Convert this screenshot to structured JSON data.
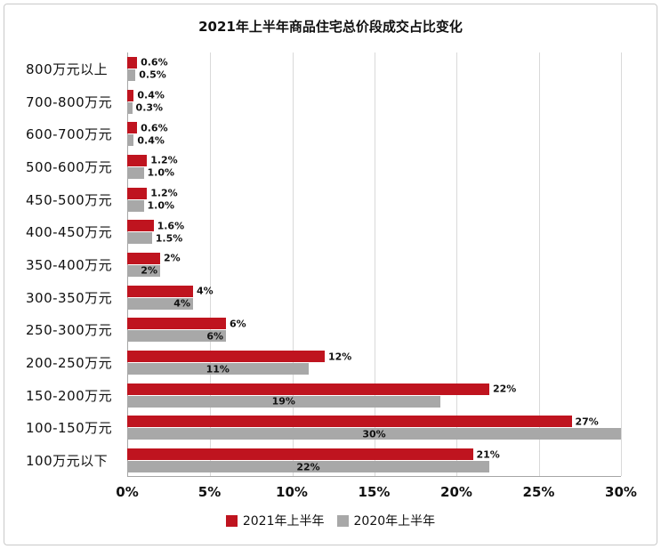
{
  "chart_data": {
    "type": "bar",
    "orientation": "horizontal",
    "title": "2021年上半年商品住宅总价段成交占比变化",
    "categories": [
      "800万元以上",
      "700-800万元",
      "600-700万元",
      "500-600万元",
      "450-500万元",
      "400-450万元",
      "350-400万元",
      "300-350万元",
      "250-300万元",
      "200-250万元",
      "150-200万元",
      "100-150万元",
      "100万元以下"
    ],
    "series": [
      {
        "name": "2021年上半年",
        "color": "#bf141f",
        "values": [
          0.6,
          0.4,
          0.6,
          1.2,
          1.2,
          1.6,
          2,
          4,
          6,
          12,
          22,
          27,
          21
        ],
        "labels": [
          "0.6%",
          "0.4%",
          "0.6%",
          "1.2%",
          "1.2%",
          "1.6%",
          "2%",
          "4%",
          "6%",
          "12%",
          "22%",
          "27%",
          "21%"
        ]
      },
      {
        "name": "2020年上半年",
        "color": "#a8a8a8",
        "values": [
          0.5,
          0.3,
          0.4,
          1.0,
          1.0,
          1.5,
          2,
          4,
          6,
          11,
          19,
          30,
          22
        ],
        "labels": [
          "0.5%",
          "0.3%",
          "0.4%",
          "1.0%",
          "1.0%",
          "1.5%",
          "2%",
          "4%",
          "6%",
          "11%",
          "19%",
          "30%",
          "22%"
        ]
      }
    ],
    "x_ticks": [
      "0%",
      "5%",
      "10%",
      "15%",
      "20%",
      "25%",
      "30%"
    ],
    "xlim": [
      0,
      30
    ],
    "grid": "vertical",
    "legend_position": "bottom"
  }
}
